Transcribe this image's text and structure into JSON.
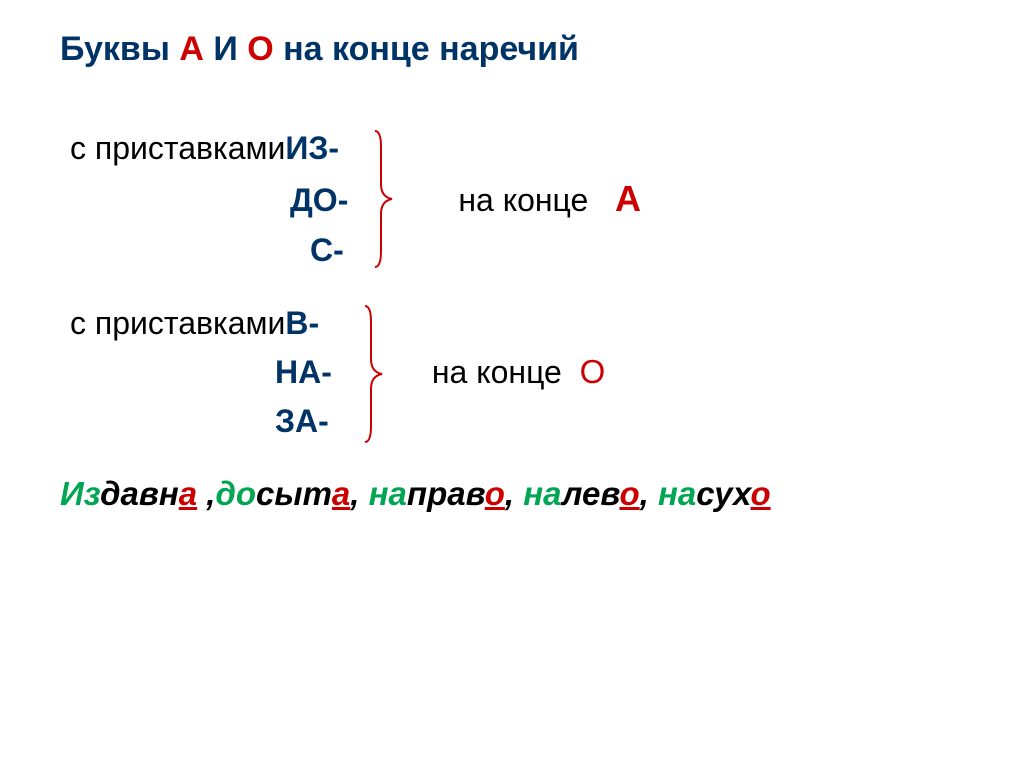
{
  "title": {
    "part1": "Буквы ",
    "letter_a": "А",
    "part2": " И ",
    "letter_o": "О",
    "part3": " на конце наречий",
    "color_blue": "#003366",
    "color_red": "#cc0000",
    "fontsize": 34
  },
  "rule1": {
    "intro": "с приставками ",
    "prefixes": [
      "ИЗ-",
      "ДО-",
      "С-"
    ],
    "end_label": "на конце",
    "end_letter": "А",
    "bracket_color": "#cc0000"
  },
  "rule2": {
    "intro": "с приставками ",
    "prefixes": [
      "В-",
      "НА-",
      "ЗА-"
    ],
    "end_label": "на конце",
    "end_letter": "О",
    "bracket_color": "#cc0000"
  },
  "examples": {
    "items": [
      {
        "prefix": "Из",
        "stem": "давн",
        "suffix": "а",
        "trailing_space": true
      },
      {
        "prefix": "до",
        "stem": "сыт",
        "suffix": "а"
      },
      {
        "prefix": "на",
        "stem": "прав",
        "suffix": "о"
      },
      {
        "prefix": "на",
        "stem": "лев",
        "suffix": "о"
      },
      {
        "prefix": "на",
        "stem": "сух",
        "suffix": "о"
      }
    ],
    "prefix_color": "#00a651",
    "stem_color": "#000000",
    "suffix_color": "#cc0000",
    "fontsize": 33
  }
}
